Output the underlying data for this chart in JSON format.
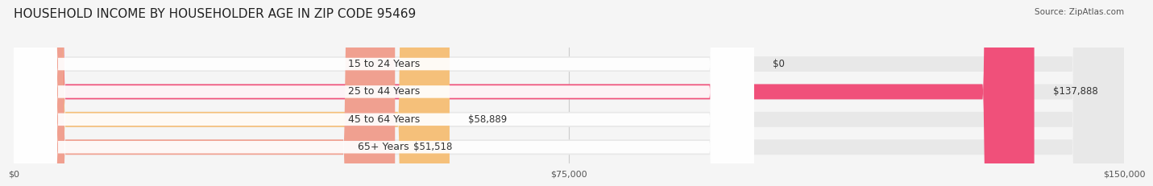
{
  "title": "HOUSEHOLD INCOME BY HOUSEHOLDER AGE IN ZIP CODE 95469",
  "source": "Source: ZipAtlas.com",
  "categories": [
    "15 to 24 Years",
    "25 to 44 Years",
    "45 to 64 Years",
    "65+ Years"
  ],
  "values": [
    0,
    137888,
    58889,
    51518
  ],
  "bar_colors": [
    "#a8a8d8",
    "#f0507a",
    "#f5c07a",
    "#f0a090"
  ],
  "xlim": [
    0,
    150000
  ],
  "xticks": [
    0,
    75000,
    150000
  ],
  "xtick_labels": [
    "$0",
    "$75,000",
    "$150,000"
  ],
  "figsize": [
    14.06,
    2.33
  ],
  "dpi": 100,
  "bar_height": 0.55,
  "background_color": "#f5f5f5",
  "title_fontsize": 11,
  "label_fontsize": 9,
  "value_fontsize": 8.5,
  "axis_fontsize": 8
}
